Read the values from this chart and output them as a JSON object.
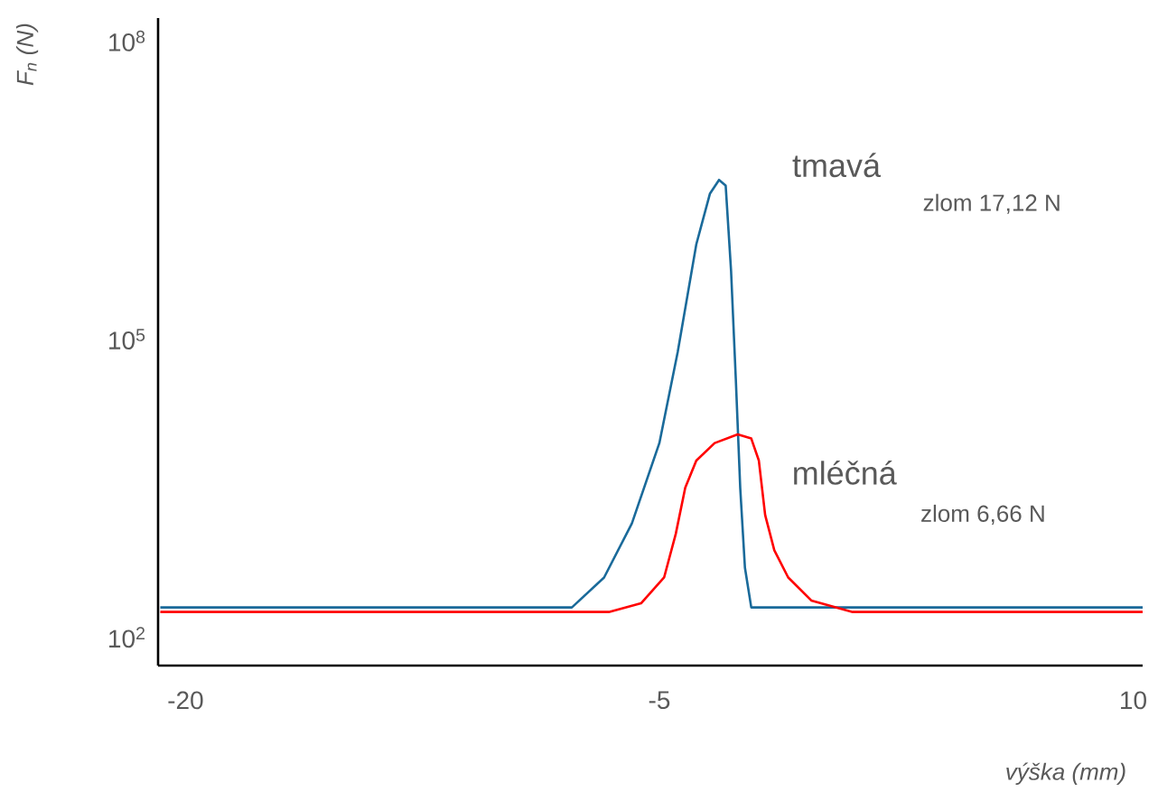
{
  "chart_data": {
    "type": "line",
    "xlabel": "výška (mm)",
    "ylabel": "F$_{n}$ (N)",
    "log": "y",
    "xlim": [
      -20.87,
      10.3
    ],
    "ylim": [
      52,
      170000000
    ],
    "xticks": [
      -20,
      -5,
      10
    ],
    "yticks": [
      {
        "value": 100,
        "label": "10$^{2}$"
      },
      {
        "value": 100000,
        "label": "10$^{5}$"
      },
      {
        "value": 100000000,
        "label": "10$^{8}$"
      }
    ],
    "grid": false,
    "legend": false,
    "marker": "none",
    "line_style": "solid",
    "series": [
      {
        "name": "tmavá",
        "color": "#1a6a9a",
        "x": [
          -20.8,
          -7.77,
          -6.75,
          -5.87,
          -5.0,
          -4.42,
          -3.83,
          -3.4,
          -3.11,
          -2.9,
          -2.73,
          -2.58,
          -2.44,
          -2.29,
          -2.09,
          10.3
        ],
        "values": [
          200,
          200,
          400,
          1400,
          9000,
          74000,
          900000,
          2900000,
          4000000,
          3500000,
          490000,
          40000,
          3200,
          500,
          200,
          200
        ]
      },
      {
        "name": "mléčná",
        "color": "#ff0000",
        "x": [
          -20.8,
          -6.6,
          -5.58,
          -4.85,
          -4.48,
          -4.18,
          -3.83,
          -3.25,
          -2.52,
          -2.09,
          -1.85,
          -1.65,
          -1.36,
          -0.92,
          -0.19,
          1.12,
          10.3
        ],
        "values": [
          180,
          180,
          220,
          400,
          1100,
          3200,
          6000,
          9000,
          11000,
          10000,
          6000,
          1700,
          750,
          400,
          235,
          180,
          180
        ]
      }
    ],
    "annotations": [
      "zlom 17,12 N",
      "zlom 6,66 N"
    ]
  }
}
